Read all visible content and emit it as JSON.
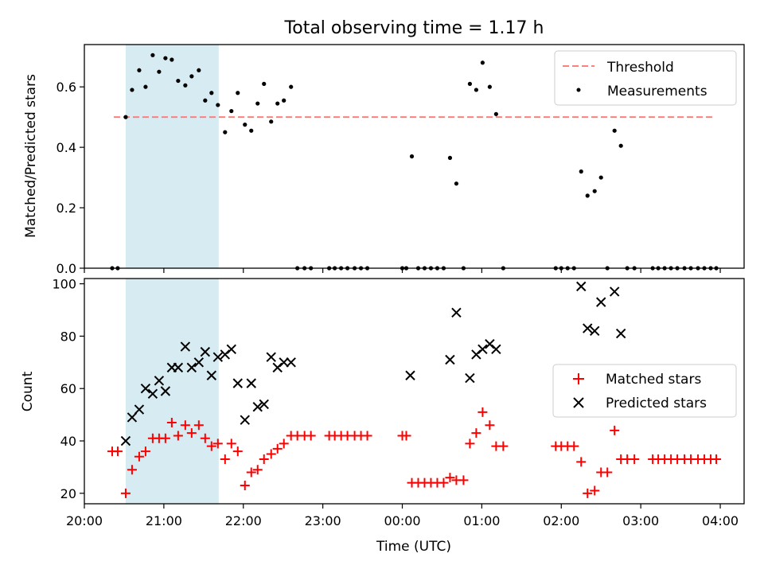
{
  "chart_data": [
    {
      "type": "scatter",
      "title": "Total observing time = 1.17 h",
      "ylabel": "Matched/Predicted stars",
      "xlabel": "",
      "x_unit": "hours after 20:00 UTC",
      "xlim": [
        20.0,
        28.3
      ],
      "ylim": [
        0,
        0.74
      ],
      "yticks": [
        0.0,
        0.2,
        0.4,
        0.6
      ],
      "ytick_labels": [
        "0.0",
        "0.2",
        "0.4",
        "0.6"
      ],
      "shaded_region": {
        "x": [
          20.52,
          21.69
        ],
        "color": "#add8e6"
      },
      "legend": {
        "placement": "top-right",
        "entries": [
          "Threshold",
          "Measurements"
        ]
      },
      "series": [
        {
          "name": "Threshold",
          "kind": "line",
          "style": "dashed",
          "color": "#ff7f7f",
          "x": [
            20.37,
            27.93
          ],
          "y": [
            0.5,
            0.5
          ]
        },
        {
          "name": "Measurements",
          "kind": "scatter",
          "color": "#000000",
          "x": [
            20.35,
            20.42,
            20.52,
            20.6,
            20.69,
            20.77,
            20.86,
            20.94,
            21.02,
            21.1,
            21.18,
            21.27,
            21.35,
            21.44,
            21.52,
            21.6,
            21.68,
            21.77,
            21.85,
            21.93,
            22.02,
            22.1,
            22.18,
            22.26,
            22.35,
            22.43,
            22.51,
            22.6,
            22.68,
            22.77,
            22.85,
            23.08,
            23.15,
            23.23,
            23.31,
            23.4,
            23.48,
            23.56,
            24.0,
            24.05,
            24.12,
            24.2,
            24.28,
            24.36,
            24.44,
            24.52,
            24.6,
            24.68,
            24.77,
            24.85,
            24.93,
            25.01,
            25.1,
            25.18,
            25.27,
            25.93,
            26.0,
            26.08,
            26.16,
            26.25,
            26.33,
            26.42,
            26.5,
            26.58,
            26.67,
            26.75,
            26.83,
            26.92,
            27.15,
            27.22,
            27.3,
            27.38,
            27.46,
            27.55,
            27.63,
            27.72,
            27.8,
            27.88,
            27.95
          ],
          "y": [
            0.0,
            0.0,
            0.5,
            0.59,
            0.655,
            0.6,
            0.705,
            0.65,
            0.695,
            0.69,
            0.62,
            0.605,
            0.635,
            0.655,
            0.555,
            0.58,
            0.54,
            0.45,
            0.52,
            0.58,
            0.475,
            0.455,
            0.545,
            0.61,
            0.485,
            0.545,
            0.555,
            0.6,
            0.0,
            0.0,
            0.0,
            0.0,
            0.0,
            0.0,
            0.0,
            0.0,
            0.0,
            0.0,
            0.0,
            0.0,
            0.37,
            0.0,
            0.0,
            0.0,
            0.0,
            0.0,
            0.365,
            0.28,
            0.0,
            0.61,
            0.59,
            0.68,
            0.6,
            0.51,
            0.0,
            0.0,
            0.0,
            0.0,
            0.0,
            0.32,
            0.24,
            0.255,
            0.3,
            0.0,
            0.455,
            0.405,
            0.0,
            0.0,
            0.0,
            0.0,
            0.0,
            0.0,
            0.0,
            0.0,
            0.0,
            0.0,
            0.0,
            0.0,
            0.0
          ]
        }
      ]
    },
    {
      "type": "scatter",
      "title": "",
      "ylabel": "Count",
      "xlabel": "Time (UTC)",
      "x_unit": "hours after 20:00 UTC",
      "xlim": [
        20.0,
        28.3
      ],
      "ylim": [
        16,
        102
      ],
      "yticks": [
        20,
        40,
        60,
        80,
        100
      ],
      "xticks": [
        20,
        21,
        22,
        23,
        24,
        25,
        26,
        27,
        28
      ],
      "xtick_labels": [
        "20:00",
        "21:00",
        "22:00",
        "23:00",
        "00:00",
        "01:00",
        "02:00",
        "03:00",
        "04:00"
      ],
      "shaded_region": {
        "x": [
          20.52,
          21.69
        ],
        "color": "#add8e6"
      },
      "legend": {
        "placement": "center-right",
        "entries": [
          "Matched stars",
          "Predicted stars"
        ]
      },
      "series": [
        {
          "name": "Matched stars",
          "marker": "+",
          "color": "#ff0000",
          "x": [
            20.35,
            20.42,
            20.52,
            20.6,
            20.69,
            20.77,
            20.86,
            20.94,
            21.02,
            21.1,
            21.18,
            21.27,
            21.35,
            21.44,
            21.52,
            21.6,
            21.68,
            21.77,
            21.85,
            21.93,
            22.02,
            22.1,
            22.18,
            22.26,
            22.35,
            22.43,
            22.51,
            22.6,
            22.68,
            22.77,
            22.85,
            23.08,
            23.15,
            23.23,
            23.31,
            23.4,
            23.48,
            23.56,
            24.0,
            24.05,
            24.12,
            24.2,
            24.28,
            24.36,
            24.44,
            24.52,
            24.6,
            24.68,
            24.77,
            24.85,
            24.93,
            25.01,
            25.1,
            25.18,
            25.27,
            25.93,
            26.0,
            26.08,
            26.16,
            26.25,
            26.33,
            26.42,
            26.5,
            26.58,
            26.67,
            26.75,
            26.83,
            26.92,
            27.15,
            27.22,
            27.3,
            27.38,
            27.46,
            27.55,
            27.63,
            27.72,
            27.8,
            27.88,
            27.95
          ],
          "y": [
            36,
            36,
            20,
            29,
            34,
            36,
            41,
            41,
            41,
            47,
            42,
            46,
            43,
            46,
            41,
            38,
            39,
            33,
            39,
            36,
            23,
            28,
            29,
            33,
            35,
            37,
            39,
            42,
            42,
            42,
            42,
            42,
            42,
            42,
            42,
            42,
            42,
            42,
            42,
            42,
            24,
            24,
            24,
            24,
            24,
            24,
            26,
            25,
            25,
            39,
            43,
            51,
            46,
            38,
            38,
            38,
            38,
            38,
            38,
            32,
            20,
            21,
            28,
            28,
            44,
            33,
            33,
            33,
            33,
            33,
            33,
            33,
            33,
            33,
            33,
            33,
            33,
            33,
            33
          ]
        },
        {
          "name": "Predicted stars",
          "marker": "x",
          "color": "#000000",
          "x": [
            20.52,
            20.6,
            20.69,
            20.77,
            20.86,
            20.94,
            21.02,
            21.1,
            21.18,
            21.27,
            21.35,
            21.44,
            21.52,
            21.6,
            21.68,
            21.77,
            21.85,
            21.93,
            22.02,
            22.1,
            22.18,
            22.26,
            22.35,
            22.43,
            22.51,
            22.6,
            24.1,
            24.6,
            24.68,
            24.85,
            24.93,
            25.01,
            25.1,
            25.18,
            26.25,
            26.33,
            26.42,
            26.5,
            26.67,
            26.75
          ],
          "y": [
            40,
            49,
            52,
            60,
            58,
            63,
            59,
            68,
            68,
            76,
            68,
            70,
            74,
            65,
            72,
            73,
            75,
            62,
            48,
            62,
            53,
            54,
            72,
            68,
            70,
            70,
            65,
            71,
            89,
            64,
            73,
            75,
            77,
            75,
            99,
            83,
            82,
            93,
            97,
            81
          ]
        }
      ]
    }
  ]
}
